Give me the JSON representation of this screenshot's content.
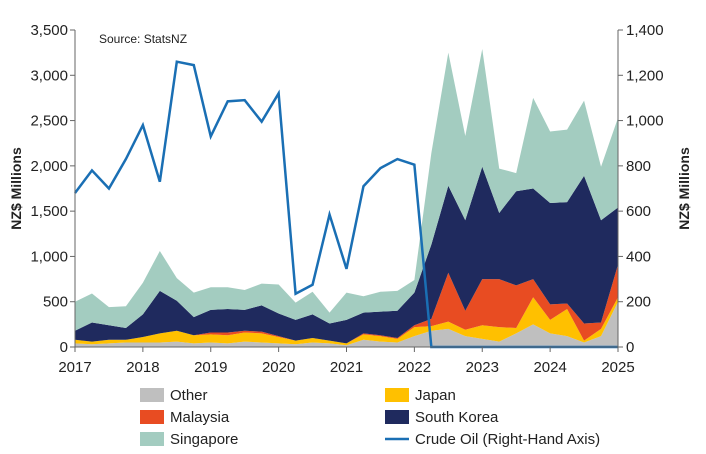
{
  "chart_data": {
    "type": "area",
    "source": "Source: StatsNZ",
    "ylabel_left": "NZ$ Millions",
    "ylabel_right": "NZ$ Millions",
    "x_ticks": [
      "2017",
      "2018",
      "2019",
      "2020",
      "2021",
      "2022",
      "2023",
      "2024",
      "2025"
    ],
    "y_left_ticks": [
      "0",
      "500",
      "1,000",
      "1,500",
      "2,000",
      "2,500",
      "3,000",
      "3,500"
    ],
    "y_right_ticks": [
      "0",
      "200",
      "400",
      "600",
      "800",
      "1,000",
      "1,200",
      "1,400"
    ],
    "xlim": [
      2017,
      2025
    ],
    "ylim_left": [
      0,
      3500
    ],
    "ylim_right": [
      0,
      1400
    ],
    "x": [
      2017.0,
      2017.25,
      2017.5,
      2017.75,
      2018.0,
      2018.25,
      2018.5,
      2018.75,
      2019.0,
      2019.25,
      2019.5,
      2019.75,
      2020.0,
      2020.25,
      2020.5,
      2020.75,
      2021.0,
      2021.25,
      2021.5,
      2021.75,
      2022.0,
      2022.25,
      2022.5,
      2022.75,
      2023.0,
      2023.25,
      2023.5,
      2023.75,
      2024.0,
      2024.25,
      2024.5,
      2024.75,
      2025.0
    ],
    "stacked_series": [
      {
        "name": "Other",
        "color": "#bfbfbf",
        "values": [
          40,
          30,
          40,
          50,
          50,
          50,
          60,
          40,
          50,
          40,
          60,
          50,
          40,
          30,
          50,
          40,
          20,
          80,
          60,
          50,
          120,
          180,
          200,
          120,
          90,
          60,
          150,
          250,
          150,
          120,
          50,
          120,
          500
        ]
      },
      {
        "name": "Japan",
        "color": "#ffc000",
        "values": [
          40,
          30,
          40,
          30,
          60,
          100,
          120,
          90,
          90,
          90,
          100,
          100,
          70,
          40,
          50,
          30,
          20,
          60,
          60,
          40,
          100,
          50,
          80,
          70,
          150,
          160,
          60,
          300,
          150,
          300,
          20,
          80,
          50
        ]
      },
      {
        "name": "Malaysia",
        "color": "#e84c22",
        "values": [
          0,
          0,
          0,
          0,
          0,
          0,
          0,
          0,
          20,
          30,
          20,
          20,
          10,
          0,
          0,
          0,
          0,
          10,
          10,
          10,
          20,
          80,
          540,
          210,
          510,
          530,
          470,
          200,
          170,
          60,
          190,
          70,
          360
        ]
      },
      {
        "name": "South Korea",
        "color": "#1f2a5e",
        "values": [
          100,
          210,
          160,
          130,
          250,
          470,
          330,
          200,
          250,
          260,
          230,
          290,
          250,
          230,
          260,
          190,
          260,
          230,
          260,
          300,
          360,
          820,
          960,
          1000,
          1240,
          730,
          1040,
          1000,
          1120,
          1120,
          1630,
          1130,
          630
        ]
      },
      {
        "name": "Singapore",
        "color": "#a3ccc0",
        "values": [
          320,
          320,
          200,
          240,
          350,
          440,
          250,
          270,
          250,
          240,
          220,
          240,
          320,
          190,
          250,
          120,
          300,
          180,
          220,
          220,
          140,
          1010,
          1470,
          930,
          1300,
          490,
          200,
          1000,
          790,
          800,
          830,
          590,
          990
        ]
      }
    ],
    "line_series": {
      "name": "Crude Oil (Right-Hand Axis)",
      "color": "#1a6fb4",
      "axis": "right",
      "values": [
        680,
        780,
        700,
        830,
        980,
        730,
        1260,
        1245,
        930,
        1085,
        1090,
        995,
        1120,
        235,
        275,
        585,
        345,
        710,
        790,
        830,
        805,
        0,
        0,
        0,
        0,
        0,
        0,
        0,
        0,
        0,
        0,
        0,
        0
      ]
    },
    "legend": [
      {
        "label": "Other",
        "kind": "swatch",
        "color": "#bfbfbf"
      },
      {
        "label": "Japan",
        "kind": "swatch",
        "color": "#ffc000"
      },
      {
        "label": "Malaysia",
        "kind": "swatch",
        "color": "#e84c22"
      },
      {
        "label": "South Korea",
        "kind": "swatch",
        "color": "#1f2a5e"
      },
      {
        "label": "Singapore",
        "kind": "swatch",
        "color": "#a3ccc0"
      },
      {
        "label": "Crude Oil (Right-Hand Axis)",
        "kind": "line",
        "color": "#1a6fb4"
      }
    ],
    "legend_placement": "bottom",
    "grid": false
  }
}
